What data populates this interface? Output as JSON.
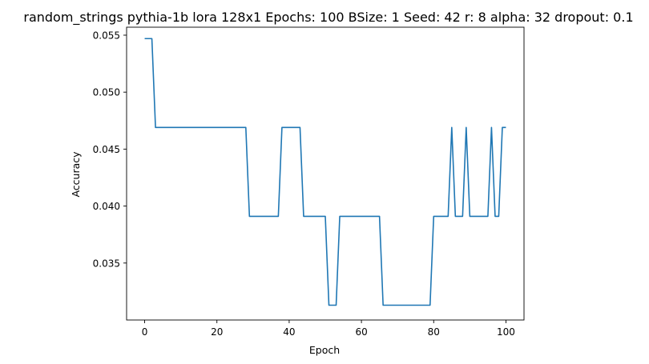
{
  "chart_data": {
    "type": "line",
    "title": "random_strings pythia-1b lora 128x1 Epochs: 100 BSize: 1 Seed: 42 r: 8 alpha: 32 dropout: 0.1",
    "xlabel": "Epoch",
    "ylabel": "Accuracy",
    "xlim": [
      -5,
      105
    ],
    "ylim": [
      0.03,
      0.0557
    ],
    "xticks": [
      0,
      20,
      40,
      60,
      80,
      100
    ],
    "xtick_labels": [
      "0",
      "20",
      "40",
      "60",
      "80",
      "100"
    ],
    "yticks": [
      0.035,
      0.04,
      0.045,
      0.05,
      0.055
    ],
    "ytick_labels": [
      "0.035",
      "0.040",
      "0.045",
      "0.050",
      "0.055"
    ],
    "grid": false,
    "series": [
      {
        "color": "#1f77b4",
        "x": [
          0,
          1,
          2,
          3,
          4,
          5,
          6,
          7,
          8,
          9,
          10,
          11,
          12,
          13,
          14,
          15,
          16,
          17,
          18,
          19,
          20,
          21,
          22,
          23,
          24,
          25,
          26,
          27,
          28,
          29,
          30,
          31,
          32,
          33,
          34,
          35,
          36,
          37,
          38,
          39,
          40,
          41,
          42,
          43,
          44,
          45,
          46,
          47,
          48,
          49,
          50,
          51,
          52,
          53,
          54,
          55,
          56,
          57,
          58,
          59,
          60,
          61,
          62,
          63,
          64,
          65,
          66,
          67,
          68,
          69,
          70,
          71,
          72,
          73,
          74,
          75,
          76,
          77,
          78,
          79,
          80,
          81,
          82,
          83,
          84,
          85,
          86,
          87,
          88,
          89,
          90,
          91,
          92,
          93,
          94,
          95,
          96,
          97,
          98,
          99,
          100
        ],
        "y": [
          0.0547,
          0.0547,
          0.0547,
          0.0469,
          0.0469,
          0.0469,
          0.0469,
          0.0469,
          0.0469,
          0.0469,
          0.0469,
          0.0469,
          0.0469,
          0.0469,
          0.0469,
          0.0469,
          0.0469,
          0.0469,
          0.0469,
          0.0469,
          0.0469,
          0.0469,
          0.0469,
          0.0469,
          0.0469,
          0.0469,
          0.0469,
          0.0469,
          0.0469,
          0.0391,
          0.0391,
          0.0391,
          0.0391,
          0.0391,
          0.0391,
          0.0391,
          0.0391,
          0.0391,
          0.0469,
          0.0469,
          0.0469,
          0.0469,
          0.0469,
          0.0469,
          0.0391,
          0.0391,
          0.0391,
          0.0391,
          0.0391,
          0.0391,
          0.0391,
          0.0313,
          0.0313,
          0.0313,
          0.0391,
          0.0391,
          0.0391,
          0.0391,
          0.0391,
          0.0391,
          0.0391,
          0.0391,
          0.0391,
          0.0391,
          0.0391,
          0.0391,
          0.0313,
          0.0313,
          0.0313,
          0.0313,
          0.0313,
          0.0313,
          0.0313,
          0.0313,
          0.0313,
          0.0313,
          0.0313,
          0.0313,
          0.0313,
          0.0313,
          0.0391,
          0.0391,
          0.0391,
          0.0391,
          0.0391,
          0.0469,
          0.0391,
          0.0391,
          0.0391,
          0.0469,
          0.0391,
          0.0391,
          0.0391,
          0.0391,
          0.0391,
          0.0391,
          0.0469,
          0.0391,
          0.0391,
          0.0469,
          0.0469
        ]
      }
    ]
  }
}
